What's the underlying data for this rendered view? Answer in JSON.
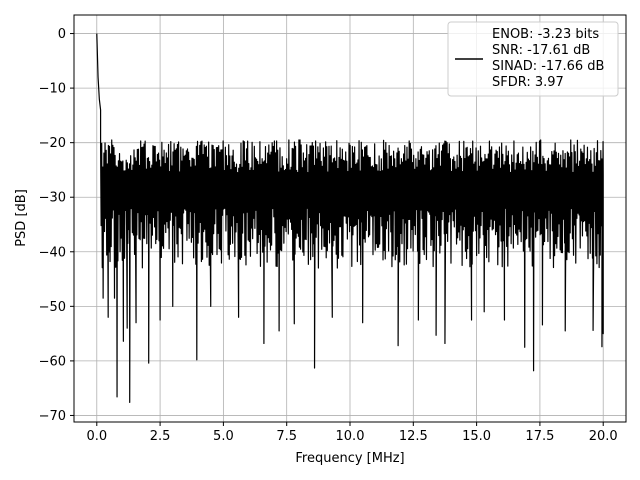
{
  "chart_data": {
    "type": "line",
    "title": "",
    "xlabel": "Frequency [MHz]",
    "ylabel": "PSD [dB]",
    "xlim": [
      -0.9,
      20.9
    ],
    "ylim": [
      -71.2,
      3.4
    ],
    "xticks": [
      0.0,
      2.5,
      5.0,
      7.5,
      10.0,
      12.5,
      15.0,
      17.5,
      20.0
    ],
    "xtick_labels": [
      "0.0",
      "2.5",
      "5.0",
      "7.5",
      "10.0",
      "12.5",
      "15.0",
      "17.5",
      "20.0"
    ],
    "yticks": [
      0,
      -10,
      -20,
      -30,
      -40,
      -50,
      -60,
      -70
    ],
    "ytick_labels": [
      "0",
      "−10",
      "−20",
      "−30",
      "−40",
      "−50",
      "−60",
      "−70"
    ],
    "grid": true,
    "legend_position": "top-right",
    "line_color": "#000000",
    "series": [
      {
        "legend_lines": [
          "ENOB: -3.23 bits",
          "SNR: -17.61 dB",
          "SINAD: -17.66 dB",
          "SFDR: 3.97"
        ],
        "peaks": [
          [
            0.0,
            0.0
          ],
          [
            0.05,
            -8.0
          ],
          [
            0.1,
            -12.0
          ],
          [
            0.15,
            -14.0
          ]
        ],
        "noise_band": {
          "upper_mean": -22.5,
          "upper_spread": 3.0,
          "lower_mean": -37.5,
          "lower_spread": 5.5,
          "x_start": 0.15,
          "x_end": 20.0
        },
        "deep_dips": [
          [
            0.25,
            -48.5
          ],
          [
            0.45,
            -52.0
          ],
          [
            0.7,
            -48.5
          ],
          [
            0.8,
            -66.6
          ],
          [
            1.05,
            -56.4
          ],
          [
            1.2,
            -54.0
          ],
          [
            1.3,
            -67.6
          ],
          [
            1.55,
            -53.0
          ],
          [
            2.05,
            -60.4
          ],
          [
            2.5,
            -52.5
          ],
          [
            3.0,
            -50.0
          ],
          [
            3.95,
            -59.8
          ],
          [
            4.5,
            -50.0
          ],
          [
            5.6,
            -52.0
          ],
          [
            6.6,
            -56.8
          ],
          [
            7.2,
            -54.5
          ],
          [
            7.8,
            -53.2
          ],
          [
            8.6,
            -61.3
          ],
          [
            9.3,
            -52.0
          ],
          [
            10.5,
            -53.0
          ],
          [
            11.9,
            -57.2
          ],
          [
            12.7,
            -52.5
          ],
          [
            13.4,
            -55.3
          ],
          [
            13.75,
            -56.8
          ],
          [
            14.8,
            -52.5
          ],
          [
            15.3,
            -51.0
          ],
          [
            16.1,
            -52.5
          ],
          [
            16.9,
            -57.5
          ],
          [
            17.25,
            -61.8
          ],
          [
            17.6,
            -53.4
          ],
          [
            18.5,
            -54.5
          ],
          [
            19.6,
            -54.4
          ],
          [
            19.95,
            -57.4
          ]
        ]
      }
    ]
  }
}
